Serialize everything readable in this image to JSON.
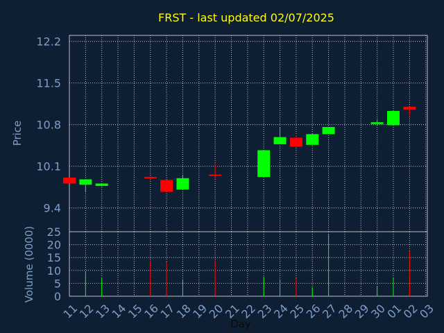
{
  "chart_data": [
    {
      "type": "candlestick",
      "title": "FRST - last updated 02/07/2025",
      "ylabel": "Price",
      "ylim": [
        9.0,
        12.3
      ],
      "yticks": [
        "12.2",
        "11.5",
        "10.8",
        "10.1",
        "9.4"
      ],
      "grid": true,
      "colors": {
        "up": "#00ff00",
        "down": "#ff0000",
        "background": "#0e1f33",
        "grid": "#c0c0c0",
        "title": "#ffff00",
        "label": "#7f9fc7"
      },
      "candles": [
        {
          "day": "11",
          "open": 9.91,
          "high": 9.91,
          "low": 9.81,
          "close": 9.81
        },
        {
          "day": "12",
          "open": 9.79,
          "high": 9.87,
          "low": 9.66,
          "close": 9.88
        },
        {
          "day": "13",
          "open": 9.77,
          "high": 9.81,
          "low": 9.76,
          "close": 9.81
        },
        {
          "day": "16",
          "open": 9.92,
          "high": 9.93,
          "low": 9.86,
          "close": 9.91
        },
        {
          "day": "17",
          "open": 9.87,
          "high": 9.87,
          "low": 9.67,
          "close": 9.67
        },
        {
          "day": "18",
          "open": 9.71,
          "high": 9.96,
          "low": 9.71,
          "close": 9.9
        },
        {
          "day": "20",
          "open": 9.96,
          "high": 10.14,
          "low": 9.89,
          "close": 9.95
        },
        {
          "day": "23",
          "open": 9.92,
          "high": 10.37,
          "low": 9.92,
          "close": 10.37
        },
        {
          "day": "24",
          "open": 10.47,
          "high": 10.75,
          "low": 10.47,
          "close": 10.59
        },
        {
          "day": "25",
          "open": 10.58,
          "high": 10.62,
          "low": 10.42,
          "close": 10.43
        },
        {
          "day": "26",
          "open": 10.46,
          "high": 10.64,
          "low": 10.46,
          "close": 10.64
        },
        {
          "day": "27",
          "open": 10.64,
          "high": 10.76,
          "low": 10.64,
          "close": 10.76
        },
        {
          "day": "30",
          "open": 10.81,
          "high": 10.88,
          "low": 10.81,
          "close": 10.84
        },
        {
          "day": "01",
          "open": 10.79,
          "high": 11.03,
          "low": 10.79,
          "close": 11.03
        },
        {
          "day": "02",
          "open": 11.1,
          "high": 11.1,
          "low": 10.95,
          "close": 11.05
        }
      ]
    },
    {
      "type": "bar",
      "xlabel": "Day",
      "ylabel": "Volume (0000)",
      "ylim": [
        0,
        25
      ],
      "yticks": [
        "25",
        "20",
        "15",
        "10",
        "5",
        "0"
      ],
      "grid": true,
      "categories": [
        "11",
        "12",
        "13",
        "14",
        "15",
        "16",
        "17",
        "18",
        "19",
        "20",
        "21",
        "22",
        "23",
        "24",
        "25",
        "26",
        "27",
        "28",
        "29",
        "30",
        "01",
        "02",
        "03"
      ],
      "bars": [
        {
          "day": "12",
          "value": 9.5,
          "direction": "up"
        },
        {
          "day": "13",
          "value": 7,
          "direction": "up"
        },
        {
          "day": "16",
          "value": 14,
          "direction": "down"
        },
        {
          "day": "17",
          "value": 13.5,
          "direction": "down"
        },
        {
          "day": "18",
          "value": 6.5,
          "direction": "up"
        },
        {
          "day": "20",
          "value": 14,
          "direction": "down"
        },
        {
          "day": "23",
          "value": 7.5,
          "direction": "up"
        },
        {
          "day": "24",
          "value": 6.5,
          "direction": "up"
        },
        {
          "day": "25",
          "value": 7,
          "direction": "down"
        },
        {
          "day": "26",
          "value": 3.5,
          "direction": "up"
        },
        {
          "day": "27",
          "value": 24,
          "direction": "up"
        },
        {
          "day": "30",
          "value": 4,
          "direction": "up"
        },
        {
          "day": "01",
          "value": 7,
          "direction": "up"
        },
        {
          "day": "02",
          "value": 17.5,
          "direction": "down"
        }
      ]
    }
  ]
}
